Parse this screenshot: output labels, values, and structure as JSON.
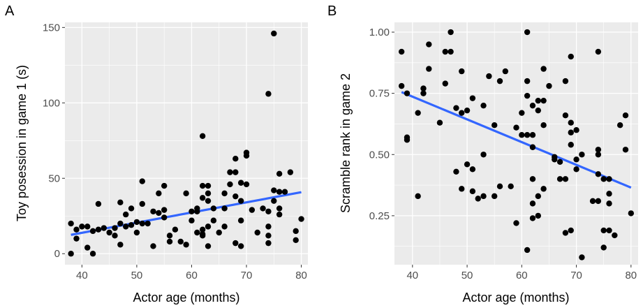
{
  "chart_data": [
    {
      "panel": "A",
      "type": "scatter",
      "xlabel": "Actor age (months)",
      "ylabel": "Toy posession in game 1 (s)",
      "xlim": [
        36.9,
        81.2
      ],
      "ylim": [
        -7.3,
        153.4
      ],
      "xticks": [
        40,
        50,
        60,
        70,
        80
      ],
      "xtick_labels": [
        "40",
        "50",
        "60",
        "70",
        "80"
      ],
      "yticks": [
        0,
        50,
        100,
        150
      ],
      "ytick_labels": [
        "0",
        "50",
        "100",
        "150"
      ],
      "grid": true,
      "fit_line": {
        "x": [
          38,
          80
        ],
        "y": [
          12.5,
          40.8
        ],
        "color": "#3366FF"
      },
      "points": [
        [
          38,
          20
        ],
        [
          38,
          0
        ],
        [
          39,
          16
        ],
        [
          39,
          10
        ],
        [
          40,
          18
        ],
        [
          41,
          18
        ],
        [
          41,
          4
        ],
        [
          42,
          15
        ],
        [
          42,
          0
        ],
        [
          43,
          33
        ],
        [
          43,
          16
        ],
        [
          44,
          17
        ],
        [
          45,
          14
        ],
        [
          46,
          12
        ],
        [
          46,
          17
        ],
        [
          47,
          34
        ],
        [
          47,
          20
        ],
        [
          47,
          6
        ],
        [
          48,
          18
        ],
        [
          48,
          26
        ],
        [
          49,
          30
        ],
        [
          49,
          19
        ],
        [
          50,
          14
        ],
        [
          50,
          21
        ],
        [
          51,
          48
        ],
        [
          51,
          33
        ],
        [
          51,
          20
        ],
        [
          52,
          20
        ],
        [
          53,
          28
        ],
        [
          53,
          5
        ],
        [
          54,
          40
        ],
        [
          54,
          27
        ],
        [
          55,
          45
        ],
        [
          55,
          29
        ],
        [
          55,
          24
        ],
        [
          56,
          12
        ],
        [
          56,
          8
        ],
        [
          57,
          16
        ],
        [
          58,
          8
        ],
        [
          59,
          40
        ],
        [
          59,
          6
        ],
        [
          60,
          28
        ],
        [
          60,
          22
        ],
        [
          61,
          30
        ],
        [
          61,
          28
        ],
        [
          61,
          14
        ],
        [
          62,
          78
        ],
        [
          62,
          45
        ],
        [
          62,
          37
        ],
        [
          62,
          16
        ],
        [
          62,
          13
        ],
        [
          62,
          12
        ],
        [
          63,
          45
        ],
        [
          63,
          40
        ],
        [
          63,
          35
        ],
        [
          63,
          18
        ],
        [
          63,
          5
        ],
        [
          64,
          30
        ],
        [
          64,
          22
        ],
        [
          65,
          14
        ],
        [
          66,
          40
        ],
        [
          66,
          30
        ],
        [
          66,
          18
        ],
        [
          67,
          54
        ],
        [
          67,
          46
        ],
        [
          68,
          63
        ],
        [
          68,
          54
        ],
        [
          68,
          38
        ],
        [
          68,
          7
        ],
        [
          69,
          47
        ],
        [
          69,
          35
        ],
        [
          69,
          22
        ],
        [
          69,
          5
        ],
        [
          70,
          67
        ],
        [
          70,
          65
        ],
        [
          70,
          46
        ],
        [
          71,
          29
        ],
        [
          72,
          14
        ],
        [
          73,
          30
        ],
        [
          74,
          106
        ],
        [
          74,
          28
        ],
        [
          74,
          18
        ],
        [
          74,
          12
        ],
        [
          74,
          7
        ],
        [
          75,
          146
        ],
        [
          75,
          42
        ],
        [
          75,
          35
        ],
        [
          76,
          53
        ],
        [
          76,
          41
        ],
        [
          76,
          30
        ],
        [
          76,
          26
        ],
        [
          77,
          41
        ],
        [
          78,
          54
        ],
        [
          79,
          15
        ],
        [
          79,
          9
        ],
        [
          80,
          23
        ]
      ]
    },
    {
      "panel": "B",
      "type": "scatter",
      "xlabel": "Actor age (months)",
      "ylabel": "Scramble rank in game 2",
      "xlim": [
        36.7,
        81.3
      ],
      "ylim": [
        0.05,
        1.04
      ],
      "xticks": [
        40,
        50,
        60,
        70,
        80
      ],
      "xtick_labels": [
        "40",
        "50",
        "60",
        "70",
        "80"
      ],
      "yticks": [
        0.25,
        0.5,
        0.75,
        1.0
      ],
      "ytick_labels": [
        "0.25",
        "0.50",
        "0.75",
        "1.00"
      ],
      "grid": true,
      "fit_line": {
        "x": [
          38,
          80
        ],
        "y": [
          0.755,
          0.365
        ],
        "color": "#3366FF"
      },
      "points": [
        [
          38,
          0.92
        ],
        [
          38,
          0.78
        ],
        [
          39,
          0.75
        ],
        [
          39,
          0.57
        ],
        [
          39,
          0.56
        ],
        [
          41,
          0.67
        ],
        [
          41,
          0.33
        ],
        [
          42,
          0.77
        ],
        [
          42,
          0.75
        ],
        [
          43,
          0.95
        ],
        [
          43,
          0.85
        ],
        [
          45,
          0.63
        ],
        [
          46,
          0.92
        ],
        [
          46,
          0.79
        ],
        [
          47,
          1.0
        ],
        [
          47,
          0.92
        ],
        [
          48,
          0.69
        ],
        [
          48,
          0.43
        ],
        [
          49,
          0.84
        ],
        [
          49,
          0.67
        ],
        [
          49,
          0.36
        ],
        [
          50,
          0.68
        ],
        [
          50,
          0.46
        ],
        [
          51,
          0.73
        ],
        [
          51,
          0.44
        ],
        [
          51,
          0.35
        ],
        [
          52,
          0.32
        ],
        [
          53,
          0.7
        ],
        [
          53,
          0.5
        ],
        [
          53,
          0.33
        ],
        [
          54,
          0.82
        ],
        [
          55,
          0.62
        ],
        [
          55,
          0.33
        ],
        [
          56,
          0.8
        ],
        [
          56,
          0.37
        ],
        [
          57,
          0.84
        ],
        [
          58,
          0.37
        ],
        [
          59,
          0.61
        ],
        [
          59,
          0.22
        ],
        [
          60,
          0.67
        ],
        [
          60,
          0.58
        ],
        [
          61,
          1.0
        ],
        [
          61,
          0.8
        ],
        [
          61,
          0.74
        ],
        [
          61,
          0.58
        ],
        [
          61,
          0.11
        ],
        [
          62,
          0.7
        ],
        [
          62,
          0.58
        ],
        [
          62,
          0.53
        ],
        [
          62,
          0.4
        ],
        [
          62,
          0.3
        ],
        [
          62,
          0.24
        ],
        [
          63,
          0.72
        ],
        [
          63,
          0.68
        ],
        [
          63,
          0.33
        ],
        [
          63,
          0.25
        ],
        [
          64,
          0.85
        ],
        [
          64,
          0.72
        ],
        [
          64,
          0.62
        ],
        [
          64,
          0.36
        ],
        [
          65,
          0.78
        ],
        [
          66,
          0.49
        ],
        [
          66,
          0.48
        ],
        [
          67,
          0.47
        ],
        [
          67,
          0.4
        ],
        [
          68,
          0.8
        ],
        [
          68,
          0.66
        ],
        [
          68,
          0.4
        ],
        [
          68,
          0.18
        ],
        [
          69,
          0.9
        ],
        [
          69,
          0.63
        ],
        [
          69,
          0.59
        ],
        [
          69,
          0.54
        ],
        [
          69,
          0.19
        ],
        [
          70,
          0.6
        ],
        [
          70,
          0.48
        ],
        [
          70,
          0.44
        ],
        [
          71,
          0.5
        ],
        [
          71,
          0.08
        ],
        [
          73,
          0.31
        ],
        [
          74,
          0.92
        ],
        [
          74,
          0.52
        ],
        [
          74,
          0.5
        ],
        [
          74,
          0.42
        ],
        [
          74,
          0.31
        ],
        [
          75,
          0.4
        ],
        [
          75,
          0.19
        ],
        [
          75,
          0.12
        ],
        [
          76,
          0.4
        ],
        [
          76,
          0.34
        ],
        [
          76,
          0.3
        ],
        [
          76,
          0.19
        ],
        [
          77,
          0.17
        ],
        [
          78,
          0.62
        ],
        [
          79,
          0.66
        ],
        [
          79,
          0.52
        ],
        [
          80,
          0.26
        ]
      ]
    }
  ]
}
